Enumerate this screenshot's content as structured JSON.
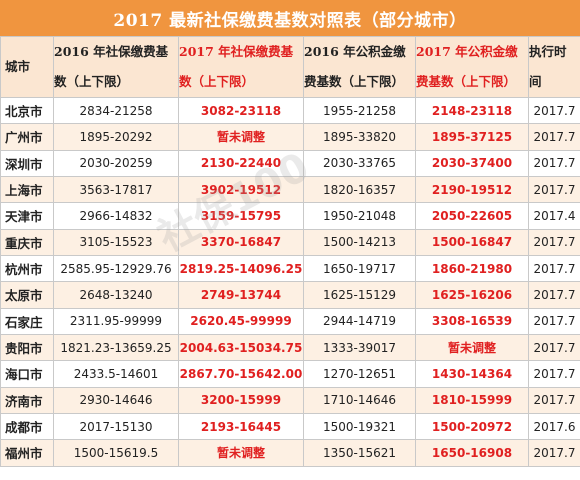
{
  "title": "2017 最新社保缴费基数对照表（部分城市）",
  "columns": [
    {
      "line1": "城市",
      "line2": "",
      "highlight": false
    },
    {
      "line1": "2016 年社保缴费基",
      "line2": "数（上下限）",
      "highlight": false
    },
    {
      "line1": "2017 年社保缴费基",
      "line2": "数（上下限）",
      "highlight": true
    },
    {
      "line1": "2016 年公积金缴",
      "line2": "费基数（上下限）",
      "highlight": false
    },
    {
      "line1": "2017 年公积金缴",
      "line2": "费基数（上下限）",
      "highlight": true
    },
    {
      "line1": "执行时",
      "line2": "间",
      "highlight": false
    }
  ],
  "rows": [
    {
      "city": "北京市",
      "s2016": "2834-21258",
      "s2017": "3082-23118",
      "f2016": "1955-21258",
      "f2017": "2148-23118",
      "date": "2017.7"
    },
    {
      "city": "广州市",
      "s2016": "1895-20292",
      "s2017": "暂未调整",
      "f2016": "1895-33820",
      "f2017": "1895-37125",
      "date": "2017.7"
    },
    {
      "city": "深圳市",
      "s2016": "2030-20259",
      "s2017": "2130-22440",
      "f2016": "2030-33765",
      "f2017": "2030-37400",
      "date": "2017.7"
    },
    {
      "city": "上海市",
      "s2016": "3563-17817",
      "s2017": "3902-19512",
      "f2016": "1820-16357",
      "f2017": "2190-19512",
      "date": "2017.7"
    },
    {
      "city": "天津市",
      "s2016": "2966-14832",
      "s2017": "3159-15795",
      "f2016": "1950-21048",
      "f2017": "2050-22605",
      "date": "2017.4"
    },
    {
      "city": "重庆市",
      "s2016": "3105-15523",
      "s2017": "3370-16847",
      "f2016": "1500-14213",
      "f2017": "1500-16847",
      "date": "2017.7"
    },
    {
      "city": "杭州市",
      "s2016": "2585.95-12929.76",
      "s2017": "2819.25-14096.25",
      "f2016": "1650-19717",
      "f2017": "1860-21980",
      "date": "2017.7"
    },
    {
      "city": "太原市",
      "s2016": "2648-13240",
      "s2017": "2749-13744",
      "f2016": "1625-15129",
      "f2017": "1625-16206",
      "date": "2017.7"
    },
    {
      "city": "石家庄",
      "s2016": "2311.95-99999",
      "s2017": "2620.45-99999",
      "f2016": "2944-14719",
      "f2017": "3308-16539",
      "date": "2017.7"
    },
    {
      "city": "贵阳市",
      "s2016": "1821.23-13659.25",
      "s2017": "2004.63-15034.75",
      "f2016": "1333-39017",
      "f2017": "暂未调整",
      "date": "2017.7"
    },
    {
      "city": "海口市",
      "s2016": "2433.5-14601",
      "s2017": "2867.70-15642.00",
      "f2016": "1270-12651",
      "f2017": "1430-14364",
      "date": "2017.7"
    },
    {
      "city": "济南市",
      "s2016": "2930-14646",
      "s2017": "3200-15999",
      "f2016": "1710-14646",
      "f2017": "1810-15999",
      "date": "2017.7"
    },
    {
      "city": "成都市",
      "s2016": "2017-15130",
      "s2017": "2193-16445",
      "f2016": "1500-19321",
      "f2017": "1500-20972",
      "date": "2017.6"
    },
    {
      "city": "福州市",
      "s2016": "1500-15619.5",
      "s2017": "暂未调整",
      "f2016": "1350-15621",
      "f2017": "1650-16908",
      "date": "2017.7"
    }
  ],
  "watermark": "社保100",
  "colors": {
    "header_bar": "#f0953f",
    "header_row": "#fbe6d2",
    "alt_row": "#fdf0e3",
    "highlight_text": "#e02020"
  }
}
